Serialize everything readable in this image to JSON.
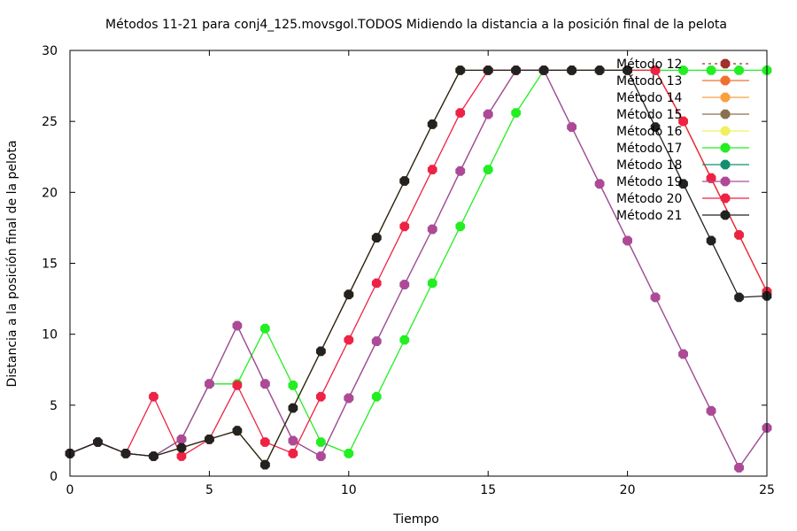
{
  "chart_data": {
    "type": "line",
    "title": "Métodos 11-21 para conj4_125.movsgol.TODOS Midiendo la distancia a la posición final de la pelota",
    "xlabel": "Tiempo",
    "ylabel": "Distancia a la posición final de la pelota",
    "xlim": [
      0,
      25
    ],
    "ylim": [
      0,
      30
    ],
    "x_ticks": [
      0,
      5,
      10,
      15,
      20,
      25
    ],
    "y_ticks": [
      0,
      5,
      10,
      15,
      20,
      25,
      30
    ],
    "grid": false,
    "legend_position": "top-right",
    "x": [
      0,
      1,
      2,
      3,
      4,
      5,
      6,
      7,
      8,
      9,
      10,
      11,
      12,
      13,
      14,
      15,
      16,
      17,
      18,
      19,
      20,
      21,
      22,
      23,
      24,
      25
    ],
    "series": [
      {
        "name": "Método 12",
        "color": "#a0302a",
        "dash": "3,4",
        "values": [
          1.6,
          2.4,
          1.6,
          1.4,
          2.0,
          2.6,
          3.2,
          0.8,
          4.8,
          8.8,
          12.8,
          16.8,
          20.8,
          24.8,
          28.6,
          28.6,
          28.6,
          28.6,
          28.6,
          28.6,
          28.6,
          28.6,
          25.0,
          21.0,
          17.0,
          13.0
        ]
      },
      {
        "name": "Método 13",
        "color": "#f07030",
        "dash": "",
        "values": [
          1.6,
          2.4,
          1.6,
          1.4,
          2.0,
          2.6,
          3.2,
          0.8,
          4.8,
          8.8,
          12.8,
          16.8,
          20.8,
          24.8,
          28.6,
          28.6,
          28.6,
          28.6,
          28.6,
          28.6,
          28.6,
          28.6,
          25.0,
          21.0,
          17.0,
          13.0
        ]
      },
      {
        "name": "Método 14",
        "color": "#f8a040",
        "dash": "",
        "values": [
          1.6,
          2.4,
          1.6,
          1.4,
          2.0,
          2.6,
          3.2,
          0.8,
          4.8,
          8.8,
          12.8,
          16.8,
          20.8,
          24.8,
          28.6,
          28.6,
          28.6,
          28.6,
          28.6,
          28.6,
          28.6,
          28.6,
          25.0,
          21.0,
          17.0,
          13.0
        ]
      },
      {
        "name": "Método 15",
        "color": "#8a7050",
        "dash": "",
        "values": [
          1.6,
          2.4,
          1.6,
          1.4,
          2.0,
          2.6,
          3.2,
          0.8,
          4.8,
          8.8,
          12.8,
          16.8,
          20.8,
          24.8,
          28.6,
          28.6,
          28.6,
          28.6,
          28.6,
          28.6,
          28.6,
          28.6,
          25.0,
          21.0,
          17.0,
          13.0
        ]
      },
      {
        "name": "Método 16",
        "color": "#f0f060",
        "dash": "",
        "values": [
          1.6,
          2.4,
          1.6,
          1.4,
          2.0,
          2.6,
          3.2,
          0.8,
          4.8,
          8.8,
          12.8,
          16.8,
          20.8,
          24.8,
          28.6,
          28.6,
          28.6,
          28.6,
          28.6,
          28.6,
          28.6,
          28.6,
          25.0,
          21.0,
          17.0,
          13.0
        ]
      },
      {
        "name": "Método 17",
        "color": "#22ee22",
        "dash": "",
        "values": [
          1.6,
          2.4,
          1.6,
          1.4,
          2.6,
          6.5,
          6.5,
          10.4,
          6.4,
          2.4,
          1.6,
          5.6,
          9.6,
          13.6,
          17.6,
          21.6,
          25.6,
          28.6,
          28.6,
          28.6,
          28.6,
          28.6,
          28.6,
          28.6,
          28.6,
          28.6
        ]
      },
      {
        "name": "Método 18",
        "color": "#109070",
        "dash": "",
        "values": [
          1.6,
          2.4,
          1.6,
          1.4,
          2.6,
          6.5,
          10.6,
          6.5,
          2.5,
          1.4,
          5.5,
          9.5,
          13.5,
          17.4,
          21.5,
          25.5,
          28.6,
          28.6,
          24.6,
          20.6,
          16.6,
          12.6,
          8.6,
          4.6,
          0.6,
          3.4
        ]
      },
      {
        "name": "Método 19",
        "color": "#b04898",
        "dash": "",
        "values": [
          1.6,
          2.4,
          1.6,
          1.4,
          2.6,
          6.5,
          10.6,
          6.5,
          2.5,
          1.4,
          5.5,
          9.5,
          13.5,
          17.4,
          21.5,
          25.5,
          28.6,
          28.6,
          24.6,
          20.6,
          16.6,
          12.6,
          8.6,
          4.6,
          0.6,
          3.4
        ]
      },
      {
        "name": "Método 20",
        "color": "#ee2244",
        "dash": "",
        "values": [
          1.6,
          2.4,
          1.6,
          5.6,
          1.4,
          2.6,
          6.4,
          2.4,
          1.6,
          5.6,
          9.6,
          13.6,
          17.6,
          21.6,
          25.6,
          28.6,
          28.6,
          28.6,
          28.6,
          28.6,
          28.6,
          28.6,
          25.0,
          21.0,
          17.0,
          13.0
        ]
      },
      {
        "name": "Método 21",
        "color": "#222222",
        "dash": "",
        "values": [
          1.6,
          2.4,
          1.6,
          1.4,
          2.0,
          2.6,
          3.2,
          0.8,
          4.8,
          8.8,
          12.8,
          16.8,
          20.8,
          24.8,
          28.6,
          28.6,
          28.6,
          28.6,
          28.6,
          28.6,
          28.6,
          24.6,
          20.6,
          16.6,
          12.6,
          12.7
        ]
      }
    ]
  }
}
